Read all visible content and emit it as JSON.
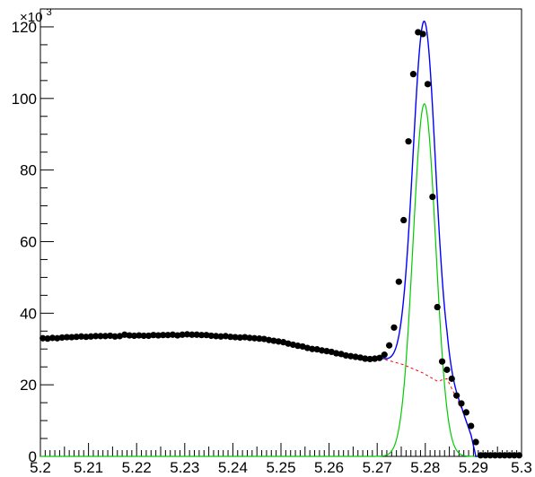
{
  "chart_data": {
    "type": "scatter",
    "title": "",
    "xlabel": "",
    "ylabel": "",
    "xlim": [
      5.2,
      5.3
    ],
    "ylim": [
      0,
      125000
    ],
    "y_multiplier_label": {
      "base": "×10",
      "exponent": "3"
    },
    "x_ticks": [
      5.2,
      5.21,
      5.22,
      5.23,
      5.24,
      5.25,
      5.26,
      5.27,
      5.28,
      5.29,
      5.3
    ],
    "x_tick_labels": [
      "5.2",
      "5.21",
      "5.22",
      "5.23",
      "5.24",
      "5.25",
      "5.26",
      "5.27",
      "5.28",
      "5.29",
      "5.3"
    ],
    "y_ticks": [
      0,
      20000,
      40000,
      60000,
      80000,
      100000,
      120000
    ],
    "y_tick_labels": [
      "0",
      "20",
      "40",
      "60",
      "80",
      "100",
      "120"
    ],
    "grid": false,
    "legend": "none",
    "data_points": {
      "x": [
        5.2005,
        5.2015,
        5.2025,
        5.2035,
        5.2045,
        5.2055,
        5.2065,
        5.2075,
        5.2085,
        5.2095,
        5.2105,
        5.2115,
        5.2125,
        5.2135,
        5.2145,
        5.2155,
        5.2165,
        5.2175,
        5.2185,
        5.2195,
        5.2205,
        5.2215,
        5.2225,
        5.2235,
        5.2245,
        5.2255,
        5.2265,
        5.2275,
        5.2285,
        5.2295,
        5.2305,
        5.2315,
        5.2325,
        5.2335,
        5.2345,
        5.2355,
        5.2365,
        5.2375,
        5.2385,
        5.2395,
        5.2405,
        5.2415,
        5.2425,
        5.2435,
        5.2445,
        5.2455,
        5.2465,
        5.2475,
        5.2485,
        5.2495,
        5.2505,
        5.2515,
        5.2525,
        5.2535,
        5.2545,
        5.2555,
        5.2565,
        5.2575,
        5.2585,
        5.2595,
        5.2605,
        5.2615,
        5.2625,
        5.2635,
        5.2645,
        5.2655,
        5.2665,
        5.2675,
        5.2685,
        5.2695,
        5.2705,
        5.2715,
        5.2725,
        5.2735,
        5.2745,
        5.2755,
        5.2765,
        5.2775,
        5.2785,
        5.2795,
        5.2805,
        5.2815,
        5.2825,
        5.2835,
        5.2845,
        5.2855,
        5.2865,
        5.2875,
        5.2885,
        5.2895,
        5.2905,
        5.2915,
        5.2925,
        5.2935,
        5.2945,
        5.2955,
        5.2965,
        5.2975,
        5.2985,
        5.2995
      ],
      "y": [
        33000,
        32900,
        33100,
        33000,
        33200,
        33300,
        33300,
        33400,
        33500,
        33400,
        33500,
        33600,
        33600,
        33600,
        33700,
        33500,
        33600,
        34000,
        33800,
        33700,
        33800,
        33700,
        33700,
        33900,
        33800,
        33900,
        33900,
        34000,
        33800,
        34000,
        34100,
        34000,
        34000,
        33900,
        33900,
        33700,
        33600,
        33500,
        33600,
        33400,
        33300,
        33200,
        33300,
        33100,
        33000,
        32900,
        32800,
        32500,
        32300,
        32100,
        31900,
        31500,
        31200,
        30900,
        30700,
        30300,
        30000,
        29900,
        29600,
        29400,
        29200,
        28800,
        28600,
        28200,
        28000,
        27800,
        27600,
        27300,
        27200,
        27300,
        27500,
        28400,
        31000,
        36000,
        48800,
        66000,
        88000,
        106800,
        118500,
        118000,
        104000,
        72500,
        41700,
        26500,
        24200,
        21700,
        17000,
        14800,
        12300,
        8500,
        4000,
        300,
        300,
        300,
        300,
        300,
        300,
        300,
        300,
        300
      ]
    },
    "fit_total": {
      "mean": 5.2798,
      "sigma": 0.00235,
      "amplitude": 98500
    },
    "fit_background": {
      "x_from": 5.2695,
      "x_to": 5.2905
    },
    "colors": {
      "data_points": "#000000",
      "total_fit": "#0000ff",
      "signal_component": "#00cc00",
      "background_component": "#ff0000",
      "frame": "#000000"
    }
  }
}
